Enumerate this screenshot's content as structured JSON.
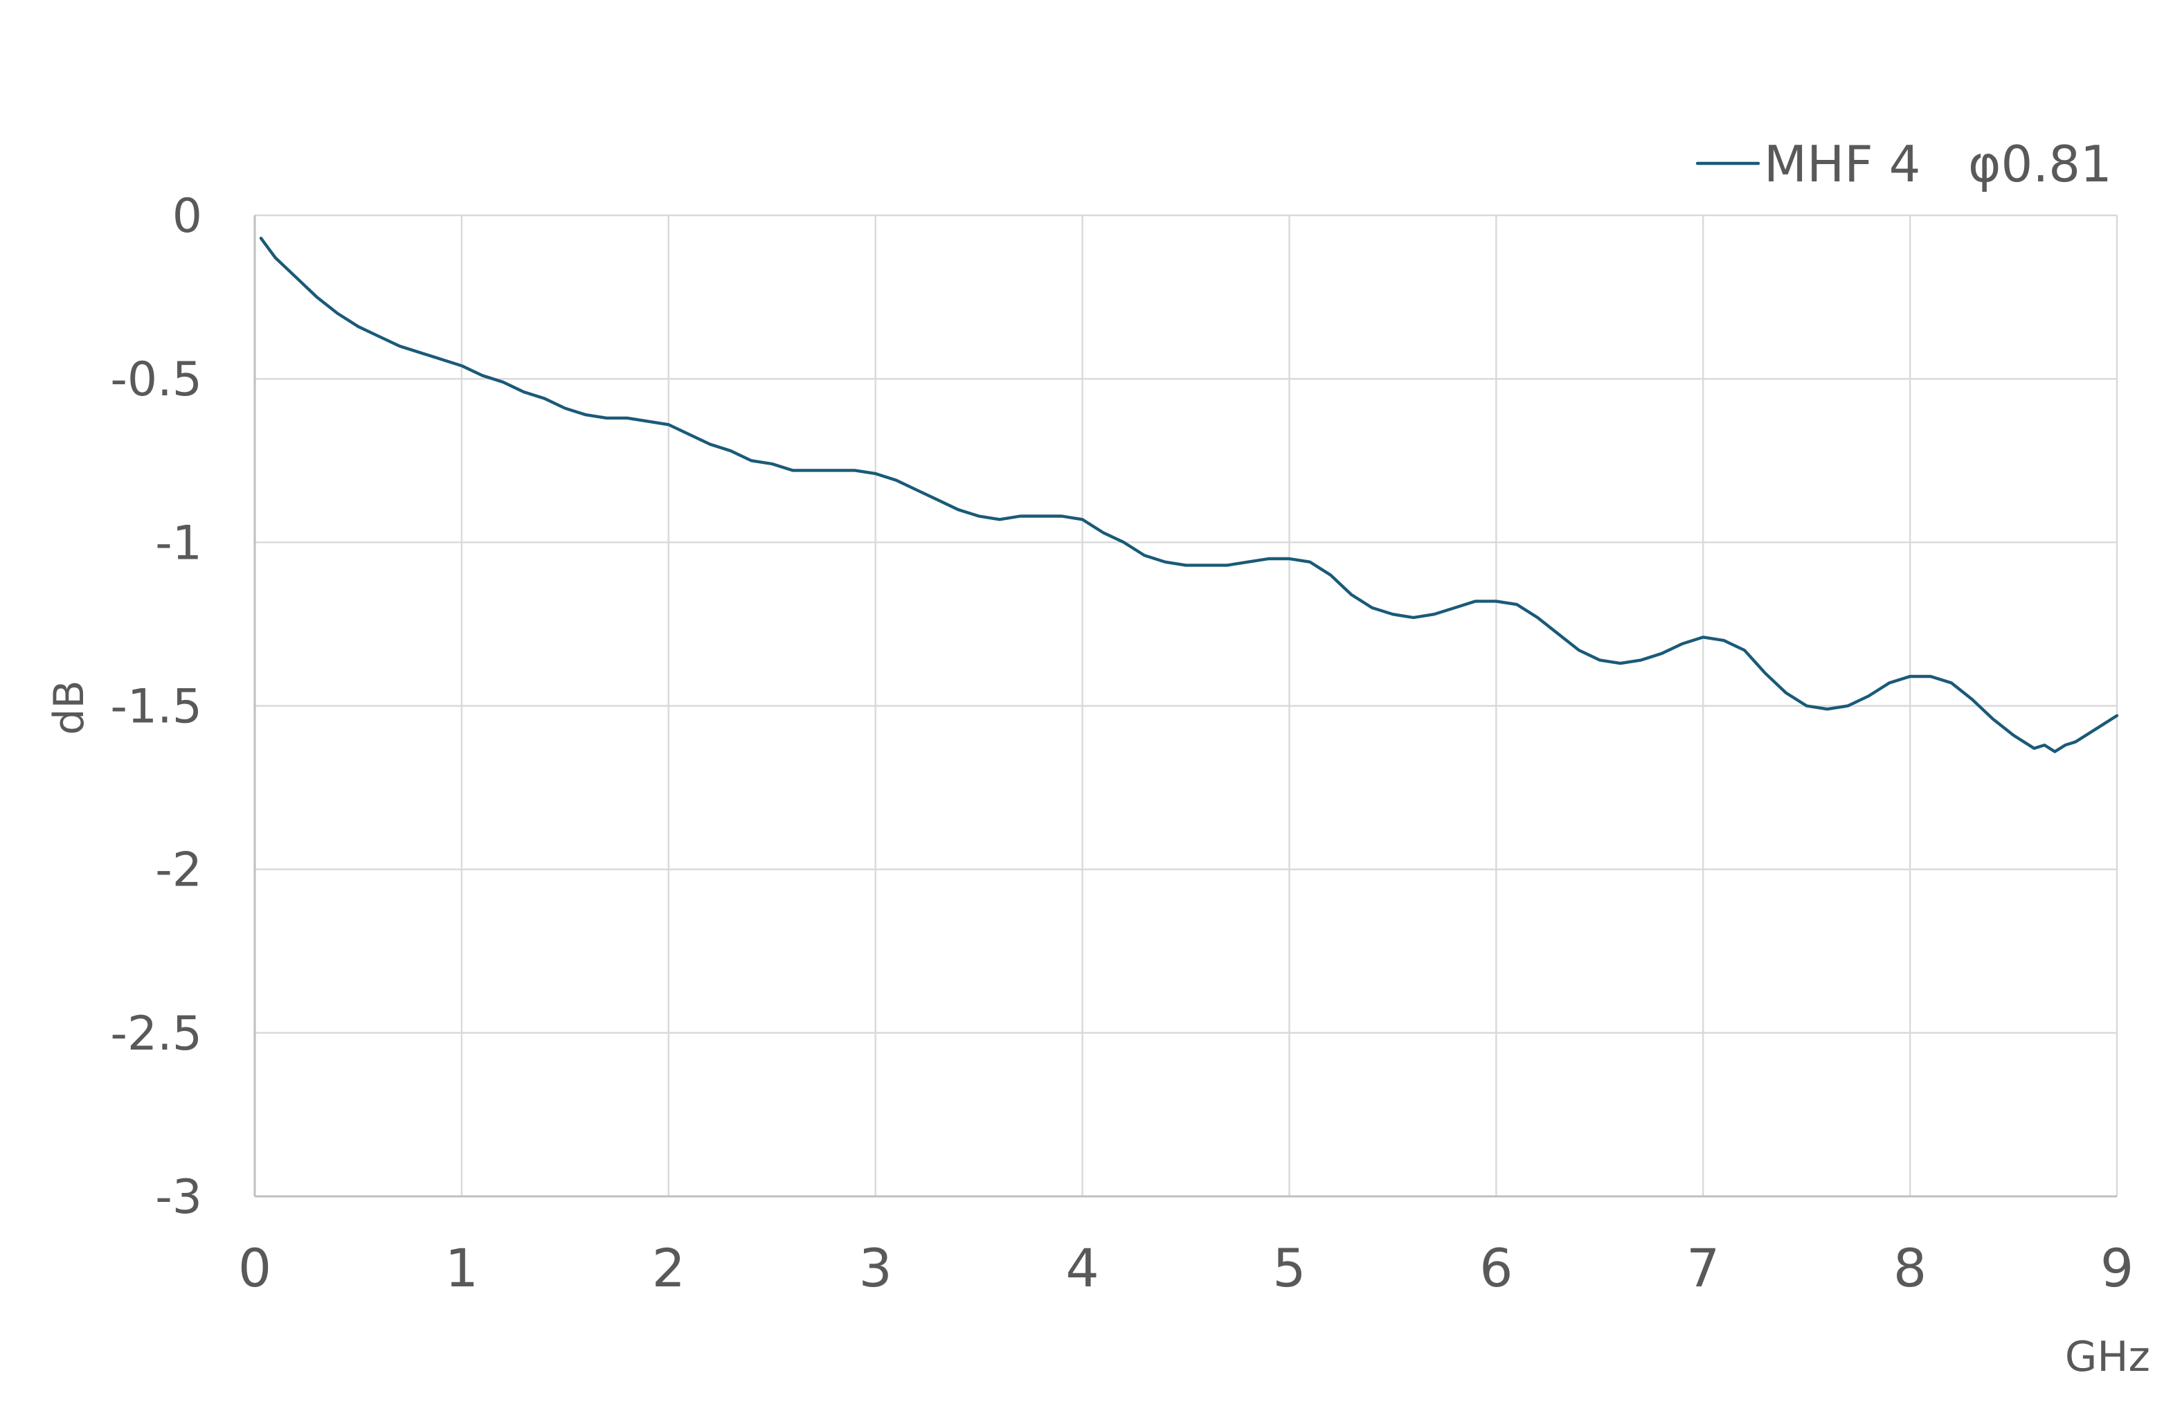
{
  "chart_data": {
    "type": "line",
    "xlabel": "GHz",
    "ylabel": "dB",
    "xlim": [
      0,
      9
    ],
    "ylim": [
      -3,
      0
    ],
    "x_ticks": [
      "0",
      "1",
      "2",
      "3",
      "4",
      "5",
      "6",
      "7",
      "8",
      "9"
    ],
    "y_ticks": [
      "0",
      "-0.5",
      "-1",
      "-1.5",
      "-2",
      "-2.5",
      "-3"
    ],
    "grid": true,
    "legend_position": "top-right",
    "colors": {
      "series": "#1a5a78",
      "grid": "#d9d9d9",
      "text": "#595959"
    },
    "series": [
      {
        "name": "MHF 4   φ0.81",
        "x": [
          0.03,
          0.1,
          0.2,
          0.3,
          0.4,
          0.5,
          0.6,
          0.7,
          0.8,
          0.9,
          1.0,
          1.1,
          1.2,
          1.3,
          1.4,
          1.5,
          1.6,
          1.7,
          1.8,
          1.9,
          2.0,
          2.1,
          2.2,
          2.3,
          2.4,
          2.5,
          2.6,
          2.7,
          2.8,
          2.9,
          3.0,
          3.1,
          3.2,
          3.3,
          3.4,
          3.5,
          3.6,
          3.7,
          3.8,
          3.9,
          4.0,
          4.1,
          4.2,
          4.3,
          4.4,
          4.5,
          4.6,
          4.7,
          4.8,
          4.9,
          5.0,
          5.1,
          5.2,
          5.3,
          5.4,
          5.5,
          5.6,
          5.7,
          5.8,
          5.9,
          6.0,
          6.1,
          6.2,
          6.3,
          6.4,
          6.5,
          6.6,
          6.7,
          6.8,
          6.9,
          7.0,
          7.1,
          7.2,
          7.3,
          7.4,
          7.5,
          7.6,
          7.7,
          7.8,
          7.9,
          8.0,
          8.1,
          8.2,
          8.3,
          8.4,
          8.5,
          8.6,
          8.65,
          8.7,
          8.75,
          8.8,
          8.9,
          9.0
        ],
        "values": [
          -0.07,
          -0.13,
          -0.19,
          -0.25,
          -0.3,
          -0.34,
          -0.37,
          -0.4,
          -0.42,
          -0.44,
          -0.46,
          -0.49,
          -0.51,
          -0.54,
          -0.56,
          -0.59,
          -0.61,
          -0.62,
          -0.62,
          -0.63,
          -0.64,
          -0.67,
          -0.7,
          -0.72,
          -0.75,
          -0.76,
          -0.78,
          -0.78,
          -0.78,
          -0.78,
          -0.79,
          -0.81,
          -0.84,
          -0.87,
          -0.9,
          -0.92,
          -0.93,
          -0.92,
          -0.92,
          -0.92,
          -0.93,
          -0.97,
          -1.0,
          -1.04,
          -1.06,
          -1.07,
          -1.07,
          -1.07,
          -1.06,
          -1.05,
          -1.05,
          -1.06,
          -1.1,
          -1.16,
          -1.2,
          -1.22,
          -1.23,
          -1.22,
          -1.2,
          -1.18,
          -1.18,
          -1.19,
          -1.23,
          -1.28,
          -1.33,
          -1.36,
          -1.37,
          -1.36,
          -1.34,
          -1.31,
          -1.29,
          -1.3,
          -1.33,
          -1.4,
          -1.46,
          -1.5,
          -1.51,
          -1.5,
          -1.47,
          -1.43,
          -1.41,
          -1.41,
          -1.43,
          -1.48,
          -1.54,
          -1.59,
          -1.63,
          -1.62,
          -1.64,
          -1.62,
          -1.61,
          -1.57,
          -1.53
        ]
      }
    ]
  }
}
